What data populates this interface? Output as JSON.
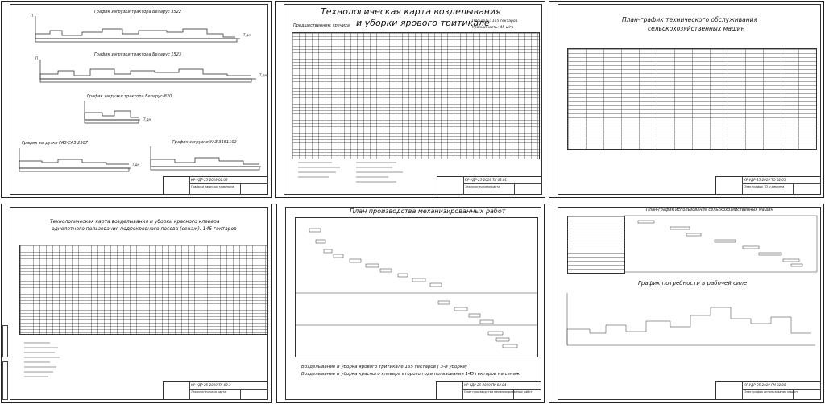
{
  "sheets": [
    {
      "id": "load-charts",
      "subtitles": [
        "График загрузки трактора Беларус 3522",
        "График загрузки трактора Беларус 1523",
        "График загрузки трактора Беларус-820",
        "График загрузки ГАЗ-САЗ-2507",
        "График загрузки УАЗ 3151102"
      ],
      "code": "КР-УДР-25-2019 02.02",
      "name": "Графики загрузки тракторов"
    },
    {
      "id": "tech-map-triticale",
      "title_line1": "Технологическая карта возделывания",
      "title_line2": "и уборки ярового тритикале",
      "predecessor": "Предшественник: гречиха",
      "area": "Площадь: 165 гектаров",
      "yield": "Урожайность: 45 ц/га",
      "code": "КР-УДР-25-2019 ТК 02.01",
      "name": "Технологическая карта"
    },
    {
      "id": "maintenance-plan",
      "title_line1": "План-график технического обслуживания",
      "title_line2": "сельскохозяйственных машин",
      "code": "КР-УДР-25-2019 ТО 02.05",
      "name": "План-график ТО и ремонта"
    },
    {
      "id": "tech-map-clover",
      "title_line1": "Технологическая карта возделывания и уборки красного клевера",
      "title_line2": "однолетнего пользования подпокровного посева (сенаж). 145 гектаров",
      "code": "КР-УДР-25-2019 ТК 02.3",
      "name": "Технологическая карта"
    },
    {
      "id": "mechanized-plan",
      "title": "План производства механизированных работ",
      "caption_line1": "Возделывание и уборка ярового тритикале 165 гектаров ( 3-й уборки)",
      "caption_line2": "Возделывание и уборка красного клевера второго года пользования 145 гектаров на сенаж",
      "code": "КР-УДР-25-2019 ПР 02.04",
      "name": "План производства механизированных работ"
    },
    {
      "id": "machine-usage",
      "title": "План-график использования сельскохозяйственных машин",
      "subtitle": "График потребности в рабочей силе",
      "code": "КР-УДР-25-2019 ГМ 02.06",
      "name": "План-график использования машин"
    }
  ]
}
